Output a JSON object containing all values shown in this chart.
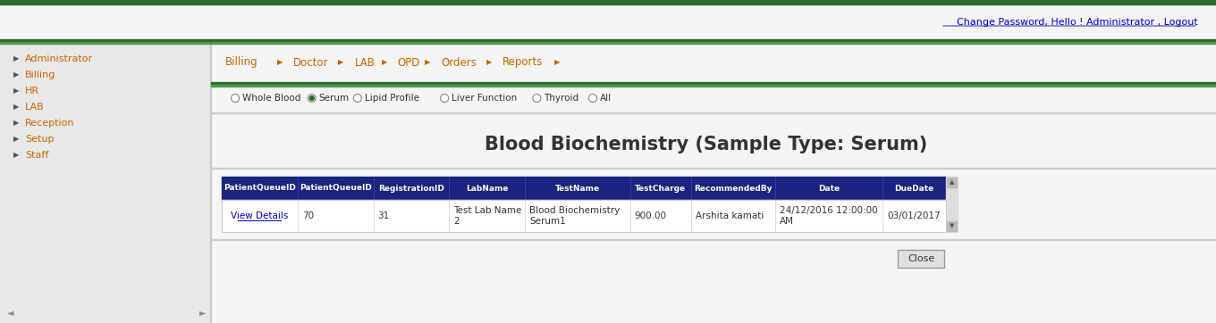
{
  "bg_color": "#f0f0f0",
  "top_bar_color": "#2d6a2d",
  "header_text": "Change Password, Hello ! Administrator , Logout",
  "header_text_color": "#0000cc",
  "nav_items": [
    "Billing",
    "Doctor",
    "LAB",
    "OPD",
    "Orders",
    "Reports"
  ],
  "sidebar_items": [
    "Administrator",
    "Billing",
    "HR",
    "LAB",
    "Reception",
    "Setup",
    "Staff"
  ],
  "sidebar_text_color": "#cc6600",
  "sidebar_bg": "#e8e8e8",
  "radio_options": [
    "Whole Blood",
    "Serum",
    "Lipid Profile",
    "Liver Function",
    "Thyroid",
    "All"
  ],
  "radio_selected": 1,
  "page_title": "Blood Biochemistry (Sample Type: Serum)",
  "table_header_bg": "#1a237e",
  "table_header_text": "#ffffff",
  "table_cols": [
    "PatientQueueID",
    "PatientQueueID",
    "RegistrationID",
    "LabName",
    "TestName",
    "TestCharge",
    "RecommendedBy",
    "Date",
    "DueDate"
  ],
  "table_row": [
    "View Details",
    "70",
    "31",
    "Test Lab Name\n2",
    "Blood Biochemistry\nSerum1",
    "900.00",
    "Arshita kamati",
    "24/12/2016 12:00:00\nAM",
    "03/01/2017"
  ],
  "link_color": "#0000cc",
  "green_line_color": "#2d6a2d",
  "nav_text_color": "#cc6600",
  "close_btn": "Close"
}
